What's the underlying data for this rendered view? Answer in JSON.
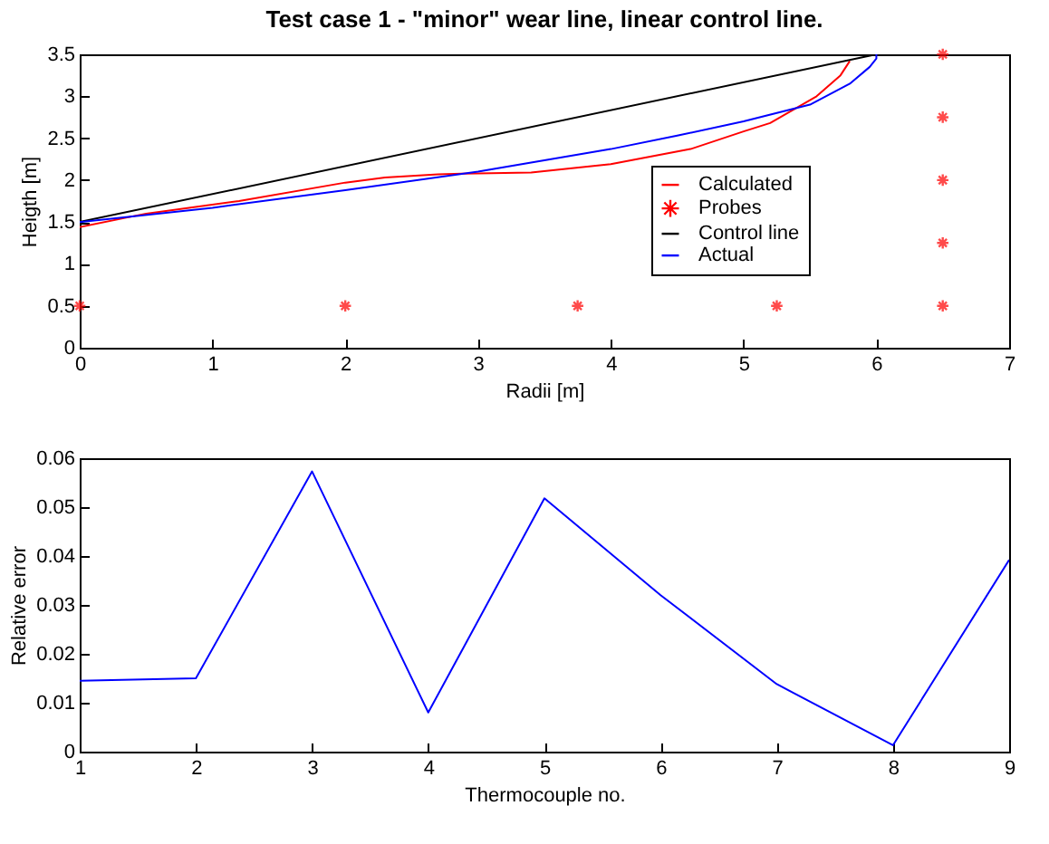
{
  "chart_data": [
    {
      "type": "line",
      "title": "Test case 1 - \"minor\" wear line, linear control line.",
      "xlabel": "Radii [m]",
      "ylabel": "Heigth [m]",
      "xlim": [
        0,
        7
      ],
      "xticks": [
        0,
        1,
        2,
        3,
        4,
        5,
        6,
        7
      ],
      "ylim": [
        0,
        3.5
      ],
      "yticks": [
        0,
        0.5,
        1,
        1.5,
        2,
        2.5,
        3,
        3.5
      ],
      "legend": "right",
      "grid": false,
      "series": [
        {
          "name": "Calculated",
          "color": "#ff0000",
          "line_style": "solid",
          "x": [
            0,
            0.5,
            1.2,
            2,
            2.3,
            2.7,
            3,
            3.4,
            4,
            4.6,
            5,
            5.2,
            5.55,
            5.73,
            5.8
          ],
          "values": [
            1.44,
            1.6,
            1.75,
            1.97,
            2.03,
            2.07,
            2.08,
            2.09,
            2.19,
            2.37,
            2.58,
            2.68,
            3.0,
            3.25,
            3.42
          ]
        },
        {
          "name": "Probes",
          "type": "scatter",
          "marker": "cross",
          "color": "#ff0000",
          "x": [
            0,
            2,
            3.75,
            5.25,
            6.5,
            6.5,
            6.5,
            6.5,
            6.5
          ],
          "values": [
            0.5,
            0.5,
            0.5,
            0.5,
            0.5,
            1.25,
            2,
            2.75,
            3.5
          ]
        },
        {
          "name": "Control line",
          "color": "#000000",
          "line_style": "solid",
          "x": [
            0,
            6
          ],
          "values": [
            1.5,
            3.5
          ]
        },
        {
          "name": "Actual",
          "color": "#0000ff",
          "line_style": "solid",
          "x": [
            0,
            1,
            2,
            3,
            4,
            4.5,
            5,
            5.5,
            5.8,
            5.95,
            6,
            6
          ],
          "values": [
            1.5,
            1.67,
            1.88,
            2.1,
            2.37,
            2.53,
            2.7,
            2.9,
            3.15,
            3.35,
            3.45,
            3.5
          ]
        }
      ]
    },
    {
      "type": "line",
      "xlabel": "Thermocouple no.",
      "ylabel": "Relative error",
      "xlim": [
        1,
        9
      ],
      "xticks": [
        1,
        2,
        3,
        4,
        5,
        6,
        7,
        8,
        9
      ],
      "ylim": [
        0,
        0.06
      ],
      "yticks": [
        0,
        0.01,
        0.02,
        0.03,
        0.04,
        0.05,
        0.06
      ],
      "grid": false,
      "series": [
        {
          "color": "#0000ff",
          "line_style": "solid",
          "x": [
            1,
            2,
            3,
            4,
            5,
            6,
            7,
            8,
            9
          ],
          "values": [
            0.0145,
            0.015,
            0.0573,
            0.008,
            0.0518,
            0.032,
            0.0138,
            0.0013,
            0.0392
          ]
        }
      ]
    }
  ]
}
